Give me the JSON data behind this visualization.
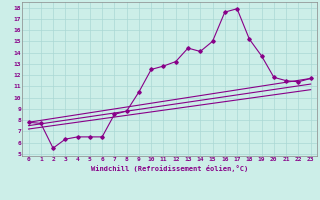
{
  "xlabel": "Windchill (Refroidissement éolien,°C)",
  "background_color": "#cceee8",
  "grid_color": "#aad8d4",
  "line_color": "#880088",
  "xlim": [
    -0.5,
    23.5
  ],
  "ylim": [
    4.8,
    18.5
  ],
  "xticks": [
    0,
    1,
    2,
    3,
    4,
    5,
    6,
    7,
    8,
    9,
    10,
    11,
    12,
    13,
    14,
    15,
    16,
    17,
    18,
    19,
    20,
    21,
    22,
    23
  ],
  "yticks": [
    5,
    6,
    7,
    8,
    9,
    10,
    11,
    12,
    13,
    14,
    15,
    16,
    17,
    18
  ],
  "curve1_x": [
    0,
    1,
    2,
    3,
    4,
    5,
    6,
    7,
    8,
    9,
    10,
    11,
    12,
    13,
    14,
    15,
    16,
    17,
    18,
    19,
    20,
    21,
    22,
    23
  ],
  "curve1_y": [
    7.8,
    7.7,
    5.5,
    6.3,
    6.5,
    6.5,
    6.5,
    8.5,
    8.8,
    10.5,
    12.5,
    12.8,
    13.2,
    14.4,
    14.1,
    15.0,
    17.6,
    17.9,
    15.2,
    13.7,
    11.8,
    11.5,
    11.4,
    11.7
  ],
  "line1_x": [
    0,
    23
  ],
  "line1_y": [
    7.2,
    10.7
  ],
  "line2_x": [
    0,
    23
  ],
  "line2_y": [
    7.5,
    11.2
  ],
  "line3_x": [
    0,
    23
  ],
  "line3_y": [
    7.8,
    11.7
  ]
}
